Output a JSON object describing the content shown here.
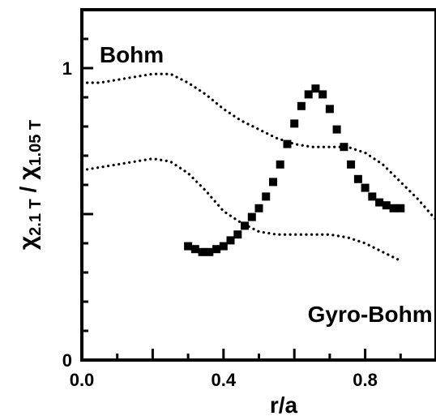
{
  "chart_data": {
    "type": "scatter",
    "xlabel": "r/a",
    "ylabel_parts": {
      "chi1": "χ",
      "sub1": "2.1 T",
      "slash": " / ",
      "chi2": "χ",
      "sub2": "1.05 T"
    },
    "xlim": [
      0.0,
      1.0
    ],
    "ylim": [
      0.0,
      1.2
    ],
    "x_ticks": [
      {
        "value": 0.0,
        "label": "0.0"
      },
      {
        "value": 0.4,
        "label": "0.4"
      },
      {
        "value": 0.8,
        "label": "0.8"
      }
    ],
    "y_ticks": [
      {
        "value": 0,
        "label": "0"
      },
      {
        "value": 1,
        "label": "1"
      }
    ],
    "annotations": [
      {
        "id": "bohm",
        "text": "Bohm",
        "x": 0.05,
        "y": 1.02
      },
      {
        "id": "gyro-bohm",
        "text": "Gyro-Bohm",
        "x": 0.99,
        "y": 0.13
      }
    ],
    "series": [
      {
        "id": "measured",
        "style": "square-markers",
        "color": "#000000",
        "points": [
          [
            0.3,
            0.39
          ],
          [
            0.32,
            0.38
          ],
          [
            0.34,
            0.37
          ],
          [
            0.36,
            0.37
          ],
          [
            0.38,
            0.38
          ],
          [
            0.4,
            0.39
          ],
          [
            0.42,
            0.41
          ],
          [
            0.44,
            0.43
          ],
          [
            0.46,
            0.46
          ],
          [
            0.48,
            0.49
          ],
          [
            0.5,
            0.52
          ],
          [
            0.52,
            0.56
          ],
          [
            0.54,
            0.61
          ],
          [
            0.56,
            0.67
          ],
          [
            0.58,
            0.74
          ],
          [
            0.6,
            0.81
          ],
          [
            0.62,
            0.87
          ],
          [
            0.64,
            0.91
          ],
          [
            0.66,
            0.93
          ],
          [
            0.68,
            0.91
          ],
          [
            0.7,
            0.86
          ],
          [
            0.72,
            0.79
          ],
          [
            0.74,
            0.73
          ],
          [
            0.76,
            0.67
          ],
          [
            0.78,
            0.62
          ],
          [
            0.8,
            0.59
          ],
          [
            0.82,
            0.56
          ],
          [
            0.84,
            0.54
          ],
          [
            0.86,
            0.53
          ],
          [
            0.88,
            0.52
          ],
          [
            0.9,
            0.52
          ]
        ]
      },
      {
        "id": "bohm-scaling",
        "style": "dotted",
        "color": "#000000",
        "points": [
          [
            0.0,
            0.95
          ],
          [
            0.05,
            0.95
          ],
          [
            0.1,
            0.96
          ],
          [
            0.15,
            0.97
          ],
          [
            0.2,
            0.98
          ],
          [
            0.25,
            0.98
          ],
          [
            0.3,
            0.95
          ],
          [
            0.35,
            0.91
          ],
          [
            0.4,
            0.86
          ],
          [
            0.45,
            0.82
          ],
          [
            0.5,
            0.79
          ],
          [
            0.55,
            0.76
          ],
          [
            0.6,
            0.74
          ],
          [
            0.65,
            0.73
          ],
          [
            0.7,
            0.73
          ],
          [
            0.75,
            0.73
          ],
          [
            0.8,
            0.71
          ],
          [
            0.85,
            0.67
          ],
          [
            0.9,
            0.61
          ],
          [
            0.95,
            0.55
          ],
          [
            1.0,
            0.48
          ]
        ]
      },
      {
        "id": "gyro-bohm-scaling",
        "style": "dotted",
        "color": "#000000",
        "points": [
          [
            0.0,
            0.65
          ],
          [
            0.05,
            0.66
          ],
          [
            0.1,
            0.67
          ],
          [
            0.15,
            0.68
          ],
          [
            0.2,
            0.69
          ],
          [
            0.25,
            0.68
          ],
          [
            0.3,
            0.64
          ],
          [
            0.35,
            0.58
          ],
          [
            0.4,
            0.51
          ],
          [
            0.45,
            0.47
          ],
          [
            0.5,
            0.44
          ],
          [
            0.55,
            0.43
          ],
          [
            0.6,
            0.43
          ],
          [
            0.65,
            0.43
          ],
          [
            0.7,
            0.43
          ],
          [
            0.75,
            0.42
          ],
          [
            0.8,
            0.4
          ],
          [
            0.85,
            0.37
          ],
          [
            0.9,
            0.34
          ]
        ]
      }
    ]
  }
}
